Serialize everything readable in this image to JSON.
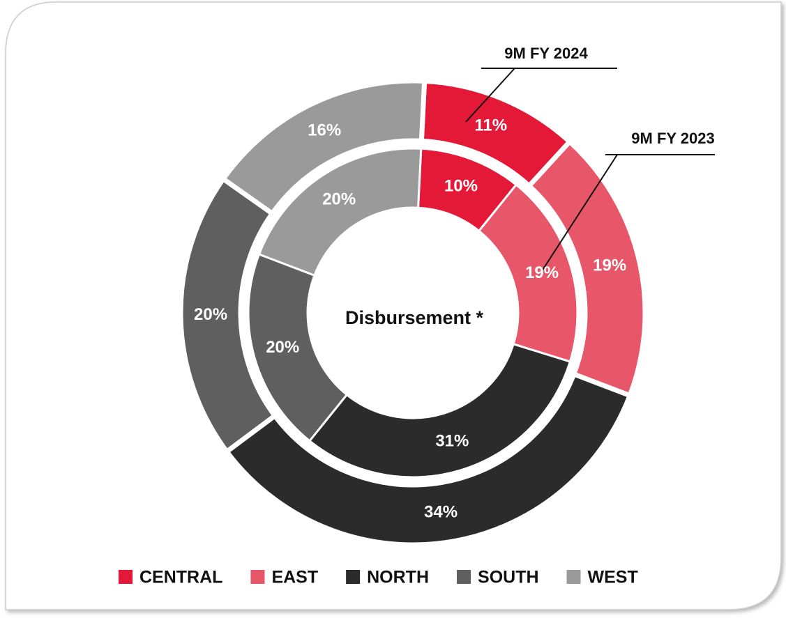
{
  "chart_data": {
    "type": "nested-donut",
    "center_label": "Disbursement *",
    "categories": [
      "CENTRAL",
      "EAST",
      "NORTH",
      "SOUTH",
      "WEST"
    ],
    "colors": [
      "#e31937",
      "#e8566a",
      "#2b2b2b",
      "#5f5f5f",
      "#9a9a9a"
    ],
    "series": [
      {
        "name": "9M FY 2024",
        "values": [
          11,
          19,
          34,
          20,
          16
        ],
        "value_labels": [
          "11%",
          "19%",
          "34%",
          "20%",
          "16%"
        ]
      },
      {
        "name": "9M FY 2023",
        "values": [
          10,
          19,
          31,
          20,
          20
        ],
        "value_labels": [
          "10%",
          "19%",
          "31%",
          "20%",
          "20%"
        ]
      }
    ]
  }
}
